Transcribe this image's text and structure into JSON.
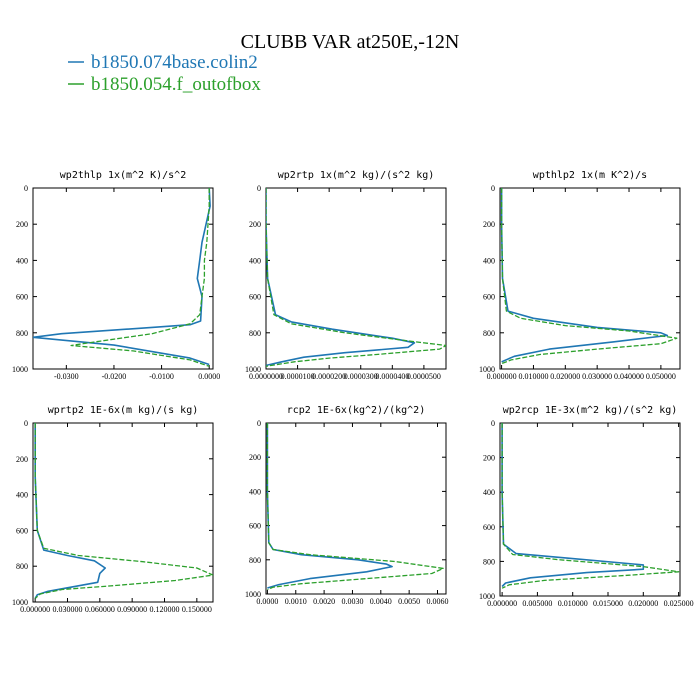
{
  "title": "CLUBB VAR at250E,-12N",
  "legend": [
    {
      "label": "b1850.074base.colin2",
      "color": "#1f77b4",
      "dash": "solid"
    },
    {
      "label": "b1850.054.f_outofbox",
      "color": "#2ca02c",
      "dash": "dashed"
    }
  ],
  "chart_data": [
    {
      "type": "line",
      "title": "wp2thlp  1x(m^2 K)/s^2",
      "xlim": [
        -0.037,
        0.0008
      ],
      "ylim": [
        1000,
        0
      ],
      "xticks": [
        -0.03,
        -0.02,
        -0.01,
        0.0
      ],
      "xtick_labels": [
        "-0.0300",
        "-0.0200",
        "-0.0100",
        "0.0000"
      ],
      "yticks": [
        0,
        200,
        400,
        600,
        800,
        1000
      ],
      "series": [
        {
          "x": [
            0.0,
            0.0002,
            -0.0015,
            -0.002,
            -0.0025,
            -0.0015,
            -0.0018,
            -0.004,
            -0.012,
            -0.031,
            -0.037,
            -0.02,
            -0.004,
            0.0
          ],
          "y": [
            0,
            100,
            300,
            400,
            500,
            600,
            735,
            755,
            770,
            805,
            825,
            868,
            940,
            975
          ]
        },
        {
          "x": [
            0.0,
            0.0,
            -0.0005,
            -0.001,
            -0.001,
            -0.0015,
            -0.002,
            -0.004,
            -0.012,
            -0.024,
            -0.029,
            -0.016,
            -0.004,
            0.0
          ],
          "y": [
            0,
            100,
            300,
            400,
            500,
            600,
            700,
            750,
            805,
            850,
            870,
            900,
            950,
            985
          ]
        }
      ]
    },
    {
      "type": "line",
      "title": "wp2rtp  1x(m^2 kg)/(s^2 kg)",
      "xlim": [
        0,
        5.7e-05
      ],
      "ylim": [
        1000,
        0
      ],
      "xticks": [
        0.0,
        1e-05,
        2e-05,
        3e-05,
        4e-05,
        5e-05
      ],
      "xtick_labels": [
        "0.0000000",
        "0.0000100",
        "0.0000200",
        "0.0000300",
        "0.0000400",
        "0.0000500"
      ],
      "yticks": [
        0,
        200,
        400,
        600,
        800,
        1000
      ],
      "series": [
        {
          "x": [
            0.0,
            0.0,
            5e-07,
            3e-06,
            8e-06,
            2.1e-05,
            4e-05,
            4.7e-05,
            4.5e-05,
            2.5e-05,
            1.2e-05,
            5e-06,
            0.0
          ],
          "y": [
            0,
            200,
            500,
            700,
            740,
            780,
            830,
            855,
            880,
            910,
            935,
            960,
            980
          ]
        },
        {
          "x": [
            0.0,
            0.0,
            5e-07,
            2.5e-06,
            8e-06,
            2.5e-05,
            4.5e-05,
            5.7e-05,
            5.5e-05,
            3.5e-05,
            2e-05,
            9e-06,
            0.0
          ],
          "y": [
            0,
            200,
            500,
            700,
            750,
            800,
            845,
            870,
            890,
            920,
            940,
            960,
            985
          ]
        }
      ]
    },
    {
      "type": "line",
      "title": "wpthlp2  1x(m K^2)/s",
      "xlim": [
        -0.0005,
        0.056
      ],
      "ylim": [
        1000,
        0
      ],
      "xticks": [
        0.0,
        0.01,
        0.02,
        0.03,
        0.04,
        0.05
      ],
      "xtick_labels": [
        "0.000000",
        "0.010000",
        "0.020000",
        "0.030000",
        "0.040000",
        "0.050000"
      ],
      "yticks": [
        0,
        200,
        400,
        600,
        800,
        1000
      ],
      "series": [
        {
          "x": [
            0.0,
            0.0,
            0.0003,
            0.002,
            0.01,
            0.03,
            0.05,
            0.052,
            0.035,
            0.015,
            0.004,
            0.0
          ],
          "y": [
            0,
            200,
            500,
            680,
            720,
            770,
            800,
            815,
            850,
            890,
            930,
            960
          ]
        },
        {
          "x": [
            0.0,
            0.0,
            0.0003,
            0.0015,
            0.006,
            0.02,
            0.04,
            0.055,
            0.05,
            0.03,
            0.012,
            0.003,
            0.0
          ],
          "y": [
            0,
            200,
            500,
            680,
            720,
            760,
            790,
            830,
            860,
            890,
            920,
            950,
            970
          ]
        }
      ]
    },
    {
      "type": "line",
      "title": "wprtp2  1E-6x(m kg)/(s kg)",
      "xlim": [
        -0.002,
        0.165
      ],
      "ylim": [
        1000,
        0
      ],
      "xticks": [
        0.0,
        0.03,
        0.06,
        0.09,
        0.12,
        0.15
      ],
      "xtick_labels": [
        "0.000000",
        "0.030000",
        "0.060000",
        "0.090000",
        "0.120000",
        "0.150000"
      ],
      "yticks": [
        0,
        200,
        400,
        600,
        800,
        1000
      ],
      "series": [
        {
          "x": [
            0.0,
            0.0,
            0.002,
            0.008,
            0.03,
            0.055,
            0.065,
            0.06,
            0.058,
            0.035,
            0.012,
            0.002,
            0.0
          ],
          "y": [
            0,
            300,
            600,
            710,
            740,
            770,
            810,
            840,
            890,
            915,
            940,
            960,
            980
          ]
        },
        {
          "x": [
            0.0,
            0.0,
            0.002,
            0.008,
            0.04,
            0.1,
            0.15,
            0.165,
            0.13,
            0.07,
            0.025,
            0.005,
            0.0
          ],
          "y": [
            0,
            300,
            600,
            700,
            740,
            775,
            810,
            850,
            880,
            910,
            930,
            955,
            980
          ]
        }
      ]
    },
    {
      "type": "line",
      "title": "rcp2  1E-6x(kg^2)/(kg^2)",
      "xlim": [
        -5e-05,
        0.0063
      ],
      "ylim": [
        1000,
        0
      ],
      "xticks": [
        0.0,
        0.001,
        0.002,
        0.003,
        0.004,
        0.005,
        0.006
      ],
      "xtick_labels": [
        "0.0000",
        "0.0010",
        "0.0020",
        "0.0030",
        "0.0040",
        "0.0050",
        "0.0060"
      ],
      "yticks": [
        0,
        200,
        400,
        600,
        800,
        1000
      ],
      "series": [
        {
          "x": [
            0.0,
            0.0,
            5e-05,
            0.0002,
            0.0012,
            0.0032,
            0.0042,
            0.0044,
            0.0035,
            0.0015,
            0.0004,
            0.0
          ],
          "y": [
            0,
            400,
            700,
            740,
            770,
            800,
            825,
            840,
            870,
            910,
            945,
            965
          ]
        },
        {
          "x": [
            0.0,
            0.0,
            5e-05,
            0.0002,
            0.0015,
            0.0045,
            0.0062,
            0.0058,
            0.0035,
            0.0012,
            0.0002,
            0.0
          ],
          "y": [
            0,
            400,
            700,
            740,
            770,
            810,
            850,
            880,
            910,
            940,
            960,
            975
          ]
        }
      ]
    },
    {
      "type": "line",
      "title": "wp2rcp  1E-3x(m^2 kg)/(s^2 kg)",
      "xlim": [
        -0.0003,
        0.0252
      ],
      "ylim": [
        1000,
        0
      ],
      "xticks": [
        0.0,
        0.005,
        0.01,
        0.015,
        0.02,
        0.025
      ],
      "xtick_labels": [
        "0.000000",
        "0.005000",
        "0.010000",
        "0.015000",
        "0.020000",
        "0.025000"
      ],
      "yticks": [
        0,
        200,
        400,
        600,
        800,
        1000
      ],
      "series": [
        {
          "x": [
            0.0,
            0.0,
            0.0002,
            0.002,
            0.009,
            0.02,
            0.02,
            0.012,
            0.004,
            0.0005,
            0.0
          ],
          "y": [
            0,
            400,
            700,
            755,
            780,
            820,
            845,
            865,
            895,
            925,
            945
          ]
        },
        {
          "x": [
            0.0,
            0.0,
            0.0002,
            0.0015,
            0.008,
            0.02,
            0.025,
            0.018,
            0.006,
            0.001,
            0.0
          ],
          "y": [
            0,
            400,
            700,
            760,
            790,
            830,
            860,
            880,
            910,
            935,
            955
          ]
        }
      ]
    }
  ]
}
